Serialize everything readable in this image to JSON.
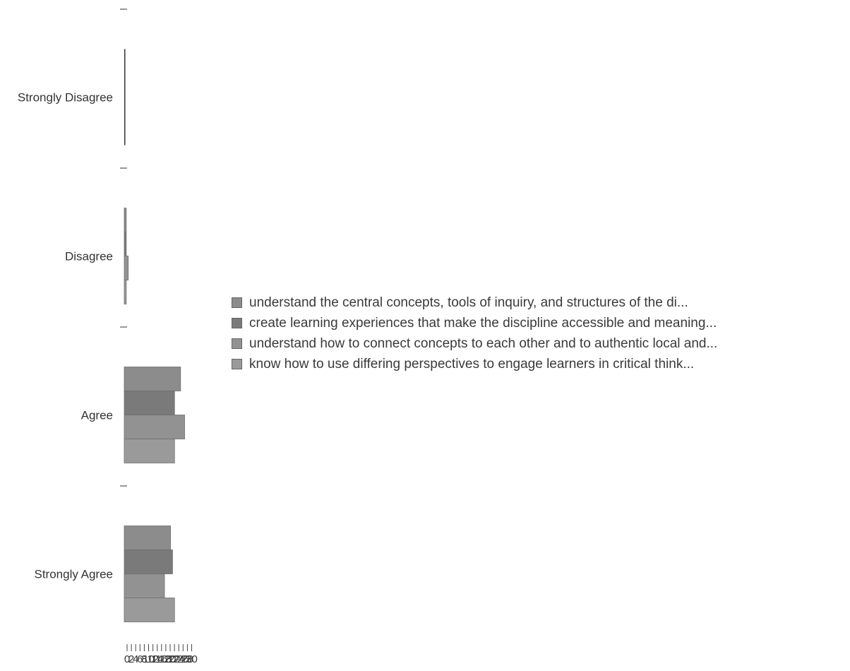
{
  "chart_data": {
    "type": "bar",
    "orientation": "horizontal",
    "categories": [
      "Strongly Disagree",
      "Disagree",
      "Agree",
      "Strongly Agree"
    ],
    "series": [
      {
        "name": "understand the central concepts, tools of inquiry, and structures of the di...",
        "values": [
          0,
          1,
          28,
          23
        ],
        "color": "#8c8c8c"
      },
      {
        "name": "create learning experiences that make the discipline accessible and meaning...",
        "values": [
          0,
          1,
          25,
          24
        ],
        "color": "#7a7a7a"
      },
      {
        "name": "understand how to connect concepts to each other and to authentic local and...",
        "values": [
          0,
          2,
          30,
          20
        ],
        "color": "#929292"
      },
      {
        "name": "know how to use differing perspectives to engage learners in critical think...",
        "values": [
          0,
          1,
          25,
          25
        ],
        "color": "#9a9a9a"
      }
    ],
    "x_ticks": [
      "0",
      "2",
      "4",
      "6",
      "8",
      "10",
      "12",
      "14",
      "16",
      "18",
      "20",
      "22",
      "24",
      "26",
      "28",
      "30"
    ],
    "xlim": [
      0,
      30
    ],
    "legend_position": "right"
  }
}
